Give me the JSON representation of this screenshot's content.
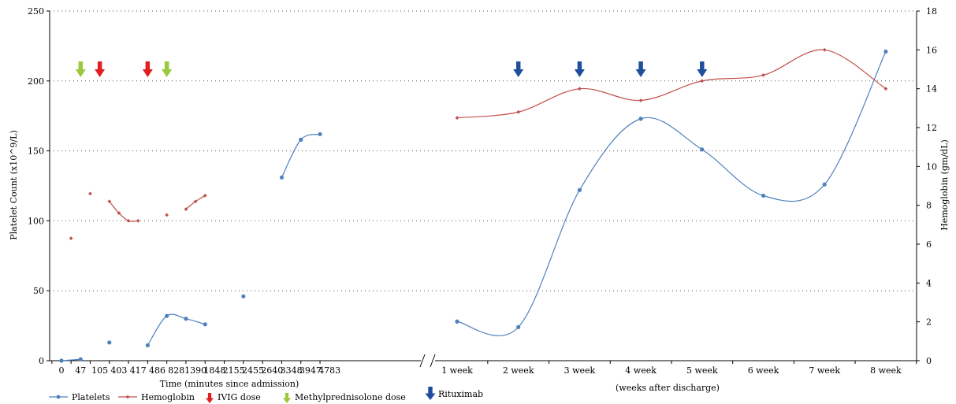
{
  "chart_data": {
    "type": "line",
    "x_labels_admission": [
      "0",
      "47",
      "105",
      "403",
      "417",
      "486",
      "828",
      "1390",
      "1848",
      "2155",
      "2455",
      "2640",
      "3348",
      "3947",
      "4783"
    ],
    "x_labels_discharge": [
      "1 week",
      "2 week",
      "3 week",
      "4 week",
      "5 week",
      "6 week",
      "7 week",
      "8 week"
    ],
    "xlabel_admission": "Time (minutes since admission)",
    "xlabel_discharge": "(weeks after discharge)",
    "ylabel_left": "Platelet Count (x10^9/L)",
    "ylabel_right": "Hemoglobin (gm/dL)",
    "ylim_left": [
      0,
      250
    ],
    "ylim_right": [
      0,
      18
    ],
    "yticks_left": [
      "0",
      "50",
      "100",
      "150",
      "200",
      "250"
    ],
    "yticks_right": [
      "0",
      "2",
      "4",
      "6",
      "8",
      "10",
      "12",
      "14",
      "16",
      "18"
    ],
    "grid": "horizontal-dotted",
    "axis_break_marker": "//",
    "series": [
      {
        "name": "Platelets",
        "axis": "left",
        "color": "#4f81bd",
        "segments": [
          [
            {
              "x": 0,
              "y": 0
            },
            {
              "x": 1,
              "y": 1
            }
          ],
          [
            {
              "x": 2.5,
              "y": 13
            }
          ],
          [
            {
              "x": 4.5,
              "y": 11
            },
            {
              "x": 5.5,
              "y": 32
            },
            {
              "x": 6.5,
              "y": 30
            },
            {
              "x": 7.5,
              "y": 26
            }
          ],
          [
            {
              "x": 9.5,
              "y": 46
            }
          ],
          [
            {
              "x": 11.5,
              "y": 131
            },
            {
              "x": 12.5,
              "y": 158
            },
            {
              "x": 13.5,
              "y": 162
            }
          ],
          [
            {
              "x": 0,
              "y": 28,
              "part": "weeks"
            },
            {
              "x": 1,
              "y": 24,
              "part": "weeks"
            },
            {
              "x": 2,
              "y": 122,
              "part": "weeks"
            },
            {
              "x": 3,
              "y": 173,
              "part": "weeks"
            },
            {
              "x": 4,
              "y": 151,
              "part": "weeks"
            },
            {
              "x": 5,
              "y": 118,
              "part": "weeks"
            },
            {
              "x": 6,
              "y": 126,
              "part": "weeks"
            },
            {
              "x": 7,
              "y": 221,
              "part": "weeks"
            }
          ]
        ]
      },
      {
        "name": "Hemoglobin",
        "axis": "right",
        "color": "#c0504d",
        "segments": [
          [
            {
              "x": 0.5,
              "y": 6.3
            }
          ],
          [
            {
              "x": 1.5,
              "y": 8.6
            }
          ],
          [
            {
              "x": 2.5,
              "y": 8.2
            },
            {
              "x": 3,
              "y": 7.6
            },
            {
              "x": 3.5,
              "y": 7.2
            },
            {
              "x": 4,
              "y": 7.2
            }
          ],
          [
            {
              "x": 5.5,
              "y": 7.5
            }
          ],
          [
            {
              "x": 6.5,
              "y": 7.8
            },
            {
              "x": 7,
              "y": 8.2
            },
            {
              "x": 7.5,
              "y": 8.5
            }
          ],
          [
            {
              "x": 0,
              "y": 12.5,
              "part": "weeks"
            },
            {
              "x": 1,
              "y": 12.8,
              "part": "weeks"
            },
            {
              "x": 2,
              "y": 14.0,
              "part": "weeks"
            },
            {
              "x": 3,
              "y": 13.4,
              "part": "weeks"
            },
            {
              "x": 4,
              "y": 14.4,
              "part": "weeks"
            },
            {
              "x": 5,
              "y": 14.7,
              "part": "weeks"
            },
            {
              "x": 6,
              "y": 16.0,
              "part": "weeks"
            },
            {
              "x": 7,
              "y": 14.0,
              "part": "weeks"
            }
          ]
        ]
      }
    ],
    "dose_markers": [
      {
        "name": "IVIG dose",
        "color": "#e02020",
        "positions": [
          {
            "part": "admission",
            "x": 2
          },
          {
            "part": "admission",
            "x": 4.5
          }
        ]
      },
      {
        "name": "Methylprednisolone dose",
        "color": "#9bc83c",
        "positions": [
          {
            "part": "admission",
            "x": 1
          },
          {
            "part": "admission",
            "x": 5.5
          }
        ]
      },
      {
        "name": "Rituximab",
        "color": "#1f4e9c",
        "positions": [
          {
            "part": "weeks",
            "x": 1
          },
          {
            "part": "weeks",
            "x": 2
          },
          {
            "part": "weeks",
            "x": 3
          },
          {
            "part": "weeks",
            "x": 4
          }
        ]
      }
    ],
    "legend": {
      "placement": "bottom-left",
      "items": [
        {
          "label": "Platelets",
          "kind": "line",
          "color": "#4f81bd"
        },
        {
          "label": "Hemoglobin",
          "kind": "line",
          "color": "#c0504d"
        },
        {
          "label": "IVIG dose",
          "kind": "arrow",
          "color": "#e02020"
        },
        {
          "label": "Methylprednisolone dose",
          "kind": "arrow",
          "color": "#9bc83c"
        },
        {
          "label": "Rituximab",
          "kind": "arrow",
          "color": "#1f4e9c"
        }
      ]
    }
  }
}
